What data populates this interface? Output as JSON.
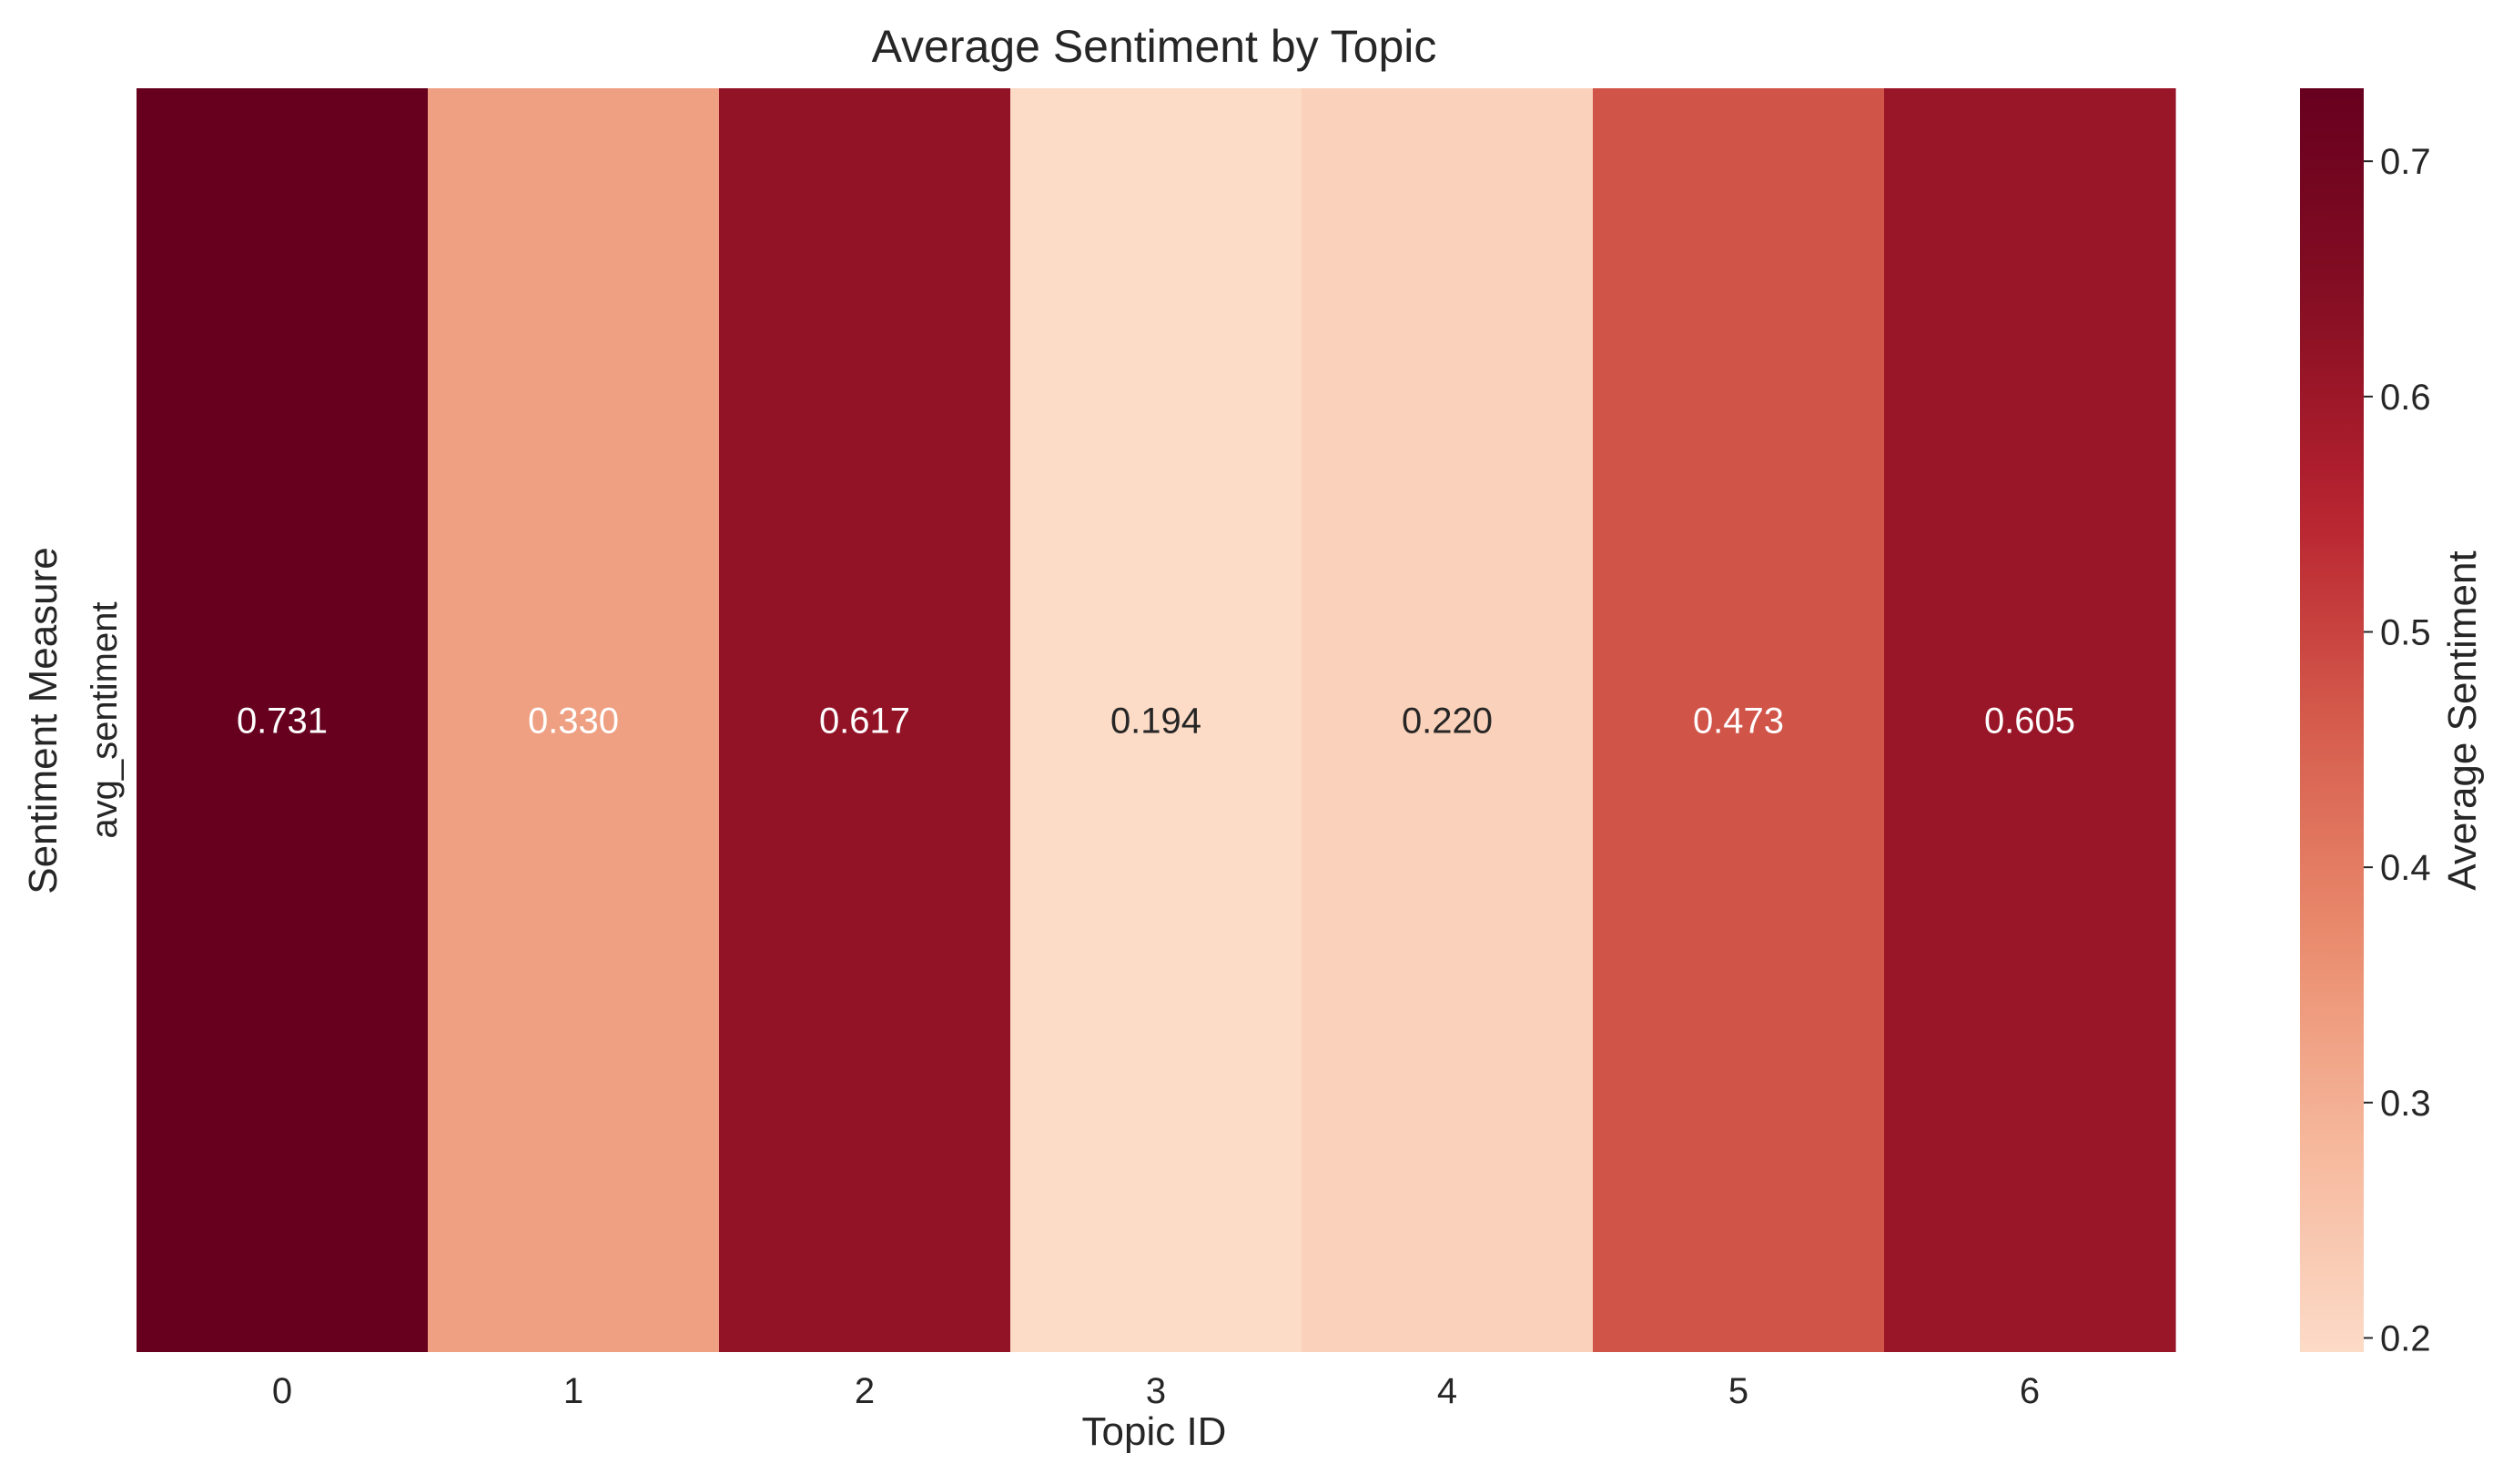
{
  "chart_data": {
    "type": "heatmap",
    "title": "Average Sentiment by Topic",
    "xlabel": "Topic ID",
    "ylabel": "Sentiment Measure",
    "x_categories": [
      "0",
      "1",
      "2",
      "3",
      "4",
      "5",
      "6"
    ],
    "y_categories": [
      "avg_sentiment"
    ],
    "values": [
      [
        0.731,
        0.33,
        0.617,
        0.194,
        0.22,
        0.473,
        0.605
      ]
    ],
    "value_labels": [
      "0.731",
      "0.330",
      "0.617",
      "0.194",
      "0.220",
      "0.473",
      "0.605"
    ],
    "colorbar": {
      "label": "Average Sentiment",
      "range": [
        0.194,
        0.731
      ],
      "ticks": [
        0.2,
        0.3,
        0.4,
        0.5,
        0.6,
        0.7
      ],
      "tick_labels": [
        "0.2",
        "0.3",
        "0.4",
        "0.5",
        "0.6",
        "0.7"
      ]
    },
    "colormap": "Reds",
    "colormap_stops": [
      "#fcdbc7",
      "#f6b79b",
      "#e98a6c",
      "#d55b4c",
      "#b7222f",
      "#850e23",
      "#67001f"
    ],
    "annotation_colors": {
      "light": "#ffffff",
      "dark": "#262626"
    },
    "grid": false
  }
}
